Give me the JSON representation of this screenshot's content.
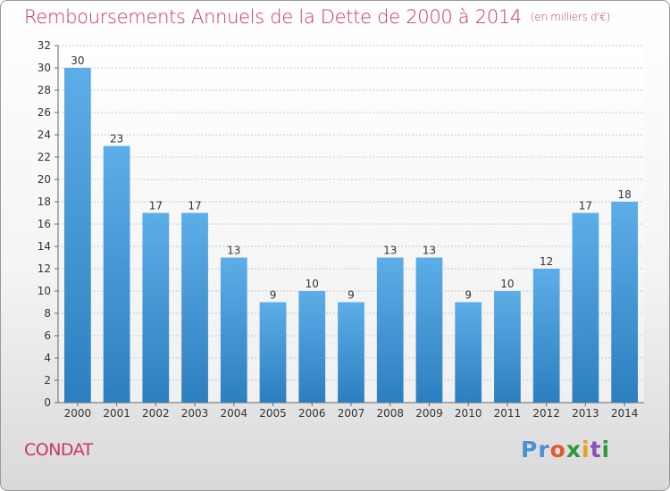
{
  "header": {
    "title": "Remboursements Annuels de la Dette de 2000 à 2014",
    "unit": "(en milliers d'€)"
  },
  "footer": {
    "place": "CONDAT",
    "logo": "Proxiti"
  },
  "logo_letters": [
    {
      "ch": "P",
      "color": "#4a90d9"
    },
    {
      "ch": "r",
      "color": "#4a90d9"
    },
    {
      "ch": "o",
      "color": "#e05a2b"
    },
    {
      "ch": "x",
      "color": "#2e9a3a"
    },
    {
      "ch": "i",
      "color": "#e7a21b"
    },
    {
      "ch": "t",
      "color": "#8a4fb5"
    },
    {
      "ch": "i",
      "color": "#2e9a3a"
    }
  ],
  "colors": {
    "title": "#cc3366",
    "bar_top": "#5dade8",
    "bar_bottom": "#2c7fbf",
    "grid": "#c8c8c8"
  },
  "chart_data": {
    "type": "bar",
    "title": "Remboursements Annuels de la Dette de 2000 à 2014",
    "xlabel": "",
    "ylabel": "",
    "categories": [
      "2000",
      "2001",
      "2002",
      "2003",
      "2004",
      "2005",
      "2006",
      "2007",
      "2008",
      "2009",
      "2010",
      "2011",
      "2012",
      "2013",
      "2014"
    ],
    "values": [
      30,
      23,
      17,
      17,
      13,
      9,
      10,
      9,
      13,
      13,
      9,
      10,
      12,
      17,
      18
    ],
    "ylim": [
      0,
      32
    ],
    "yticks": [
      0,
      2,
      4,
      6,
      8,
      10,
      12,
      14,
      16,
      18,
      20,
      22,
      24,
      26,
      28,
      30,
      32
    ],
    "grid": true,
    "data_labels": true
  }
}
